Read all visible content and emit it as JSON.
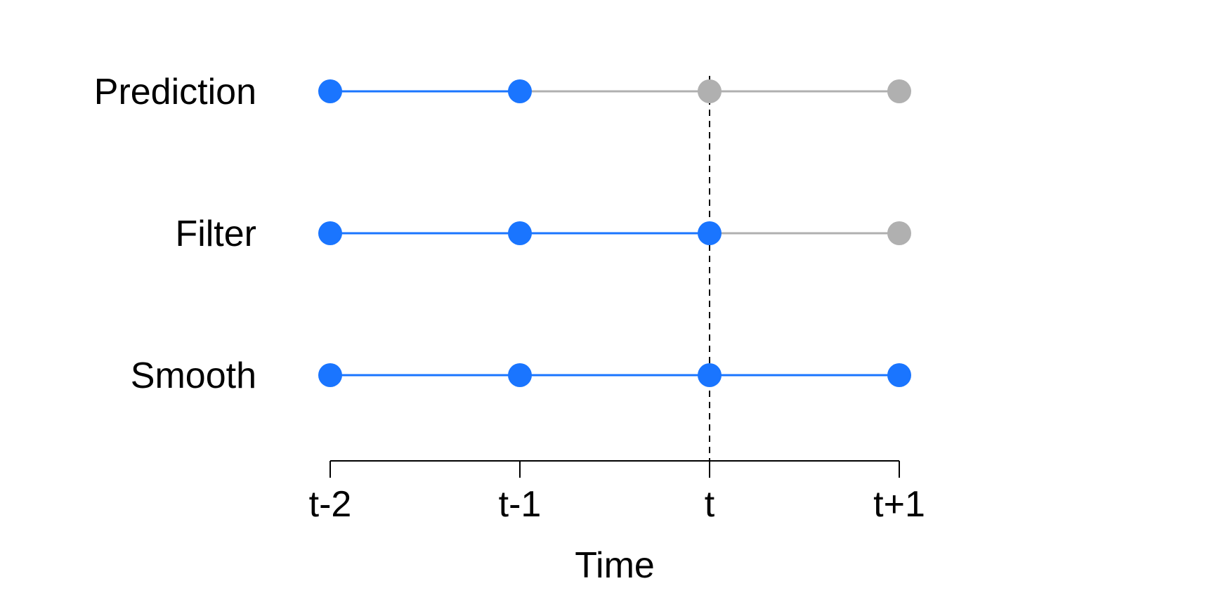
{
  "colors": {
    "active": "#1a75ff",
    "inactive": "#b0b0b0",
    "axis": "#000000",
    "current_marker": "#000000"
  },
  "time_points": [
    "t-2",
    "t-1",
    "t",
    "t+1"
  ],
  "current_time": "t",
  "axis_title": "Time",
  "rows": [
    {
      "label": "Prediction",
      "active_up_to": "t-1"
    },
    {
      "label": "Filter",
      "active_up_to": "t"
    },
    {
      "label": "Smooth",
      "active_up_to": "t+1"
    }
  ]
}
